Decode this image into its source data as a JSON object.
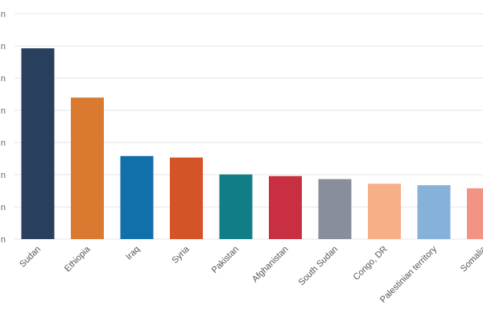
{
  "chart_data": {
    "type": "bar",
    "title": "",
    "xlabel": "",
    "ylabel": "",
    "y_tick_labels": [
      "n",
      "n",
      "n",
      "n",
      "n",
      "n",
      "n",
      "n"
    ],
    "ylim": [
      0,
      7.3
    ],
    "grid": true,
    "legend": "none",
    "categories": [
      "Sudan",
      "Ethiopia",
      "Iraq",
      "Syria",
      "Pakistan",
      "Afghanistan",
      "South Sudan",
      "Congo, DR",
      "Palestinian territory",
      "Somalia"
    ],
    "values": [
      6.2,
      4.6,
      2.7,
      2.65,
      2.1,
      2.05,
      1.95,
      1.8,
      1.75,
      1.65
    ],
    "colors": [
      "#283f5d",
      "#d97a30",
      "#1170aa",
      "#d45428",
      "#117d86",
      "#c82f40",
      "#888e9c",
      "#f6b088",
      "#86b1d9",
      "#f29384"
    ]
  }
}
